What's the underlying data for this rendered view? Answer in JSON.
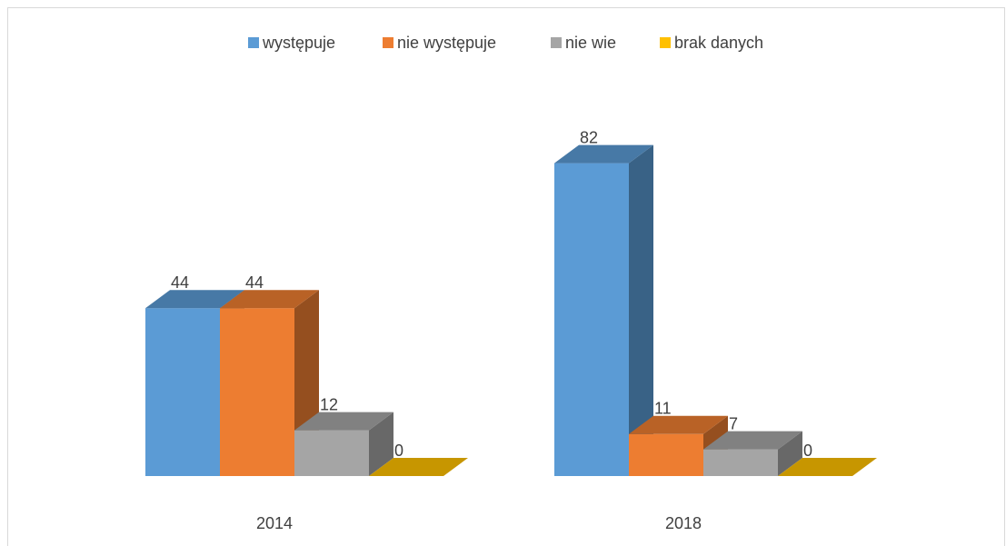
{
  "chart_data": {
    "type": "bar3d",
    "categories": [
      "2014",
      "2018"
    ],
    "series": [
      {
        "name": "występuje",
        "color": "#5b9bd5",
        "values": [
          44,
          82
        ]
      },
      {
        "name": "nie występuje",
        "color": "#ed7d31",
        "values": [
          44,
          11
        ]
      },
      {
        "name": "nie wie",
        "color": "#a5a5a5",
        "values": [
          12,
          7
        ]
      },
      {
        "name": "brak danych",
        "color": "#ffc000",
        "values": [
          0,
          0
        ]
      }
    ],
    "legend": "top"
  }
}
